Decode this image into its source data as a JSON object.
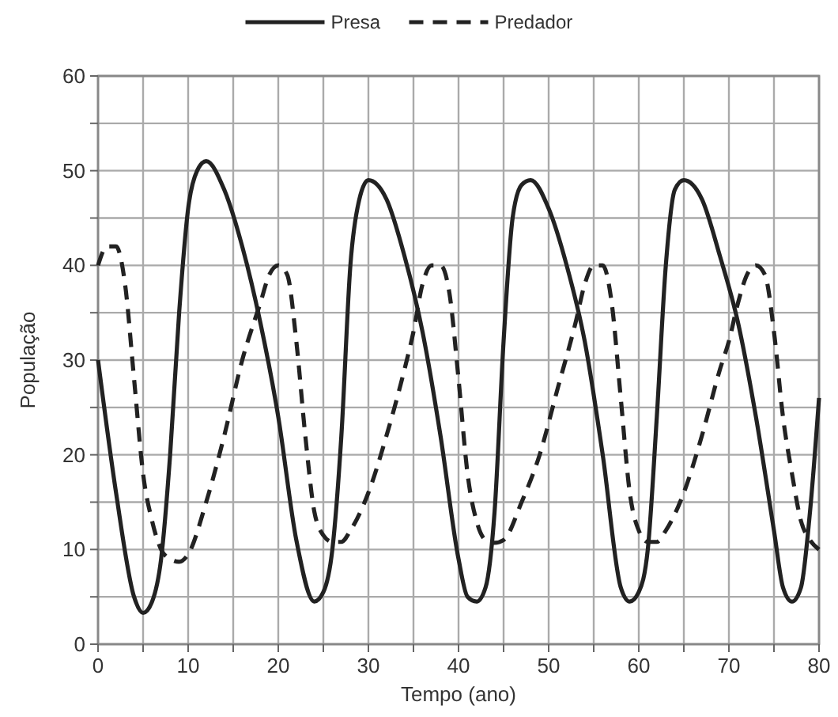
{
  "chart_data": {
    "type": "line",
    "xlabel": "Tempo (ano)",
    "ylabel": "População",
    "xlim": [
      0,
      80
    ],
    "ylim": [
      0,
      60
    ],
    "xticks": [
      0,
      {
        "value": 5,
        "label": null
      },
      10,
      {
        "value": 15,
        "label": null
      },
      20,
      {
        "value": 25,
        "label": null
      },
      30,
      {
        "value": 35,
        "label": null
      },
      40,
      {
        "value": 45,
        "label": null
      },
      50,
      {
        "value": 55,
        "label": null
      },
      60,
      {
        "value": 65,
        "label": null
      },
      70,
      {
        "value": 75,
        "label": null
      },
      80
    ],
    "yticks": [
      0,
      {
        "value": 5,
        "label": null
      },
      10,
      {
        "value": 15,
        "label": null
      },
      20,
      {
        "value": 25,
        "label": null
      },
      30,
      {
        "value": 35,
        "label": null
      },
      40,
      {
        "value": 45,
        "label": null
      },
      50,
      {
        "value": 55,
        "label": null
      },
      60
    ],
    "grid": true,
    "legend": "top",
    "series": [
      {
        "name": "Presa",
        "color": "#222222",
        "line_style": "solid",
        "x": [
          0,
          2,
          4,
          5,
          6,
          7,
          8,
          9,
          10,
          11,
          12,
          14,
          16,
          18,
          20,
          22,
          24,
          25,
          26,
          27,
          28,
          29,
          30,
          32,
          34,
          36,
          38,
          40,
          41,
          42,
          43,
          44,
          45,
          46,
          47,
          48,
          50,
          52,
          54,
          56,
          58,
          59,
          60,
          61,
          62,
          63,
          64,
          65,
          67,
          69,
          71,
          73,
          75,
          76,
          77,
          78,
          79,
          80
        ],
        "values": [
          30,
          16,
          5,
          3.3,
          4.5,
          9,
          20,
          35,
          46,
          50,
          51,
          48,
          42,
          34,
          24,
          11,
          4.5,
          5.5,
          10,
          22,
          40,
          47,
          49,
          47,
          41,
          33,
          22,
          9,
          5,
          4.5,
          6,
          14,
          32,
          45,
          48.5,
          49,
          46,
          40,
          32,
          20,
          6,
          4.5,
          5.5,
          10,
          24,
          40,
          48,
          49,
          47,
          41,
          34,
          24,
          12,
          6,
          4.5,
          6,
          14,
          26
        ]
      },
      {
        "name": "Predador",
        "color": "#222222",
        "line_style": "dashed",
        "x": [
          0,
          1,
          2,
          3,
          4,
          5,
          6,
          7,
          8,
          9,
          10,
          12,
          14,
          16,
          18,
          19,
          20,
          21,
          22,
          23,
          24,
          25,
          26,
          27,
          28,
          30,
          32,
          34,
          35,
          36,
          37,
          38,
          39,
          40,
          41,
          42,
          43,
          44,
          45,
          47,
          49,
          51,
          53,
          54,
          55,
          56,
          57,
          58,
          59,
          60,
          61,
          62,
          63,
          65,
          67,
          69,
          70,
          71,
          72,
          73,
          74,
          75,
          76,
          77,
          78,
          79,
          80
        ],
        "values": [
          40,
          42,
          42,
          38,
          28,
          18,
          13,
          10,
          9,
          8.7,
          9.5,
          15,
          22,
          30,
          36,
          39,
          40,
          39,
          32,
          22,
          14,
          11.5,
          10.8,
          10.8,
          12,
          16,
          22,
          29,
          33,
          38,
          40,
          40,
          37,
          28,
          18,
          13,
          11,
          10.7,
          11,
          15,
          20,
          27,
          34,
          38,
          40,
          40,
          36,
          26,
          16,
          12,
          10.8,
          10.8,
          12,
          16,
          22,
          29,
          32,
          36,
          39,
          40,
          39,
          33,
          24,
          18,
          13,
          11,
          10
        ]
      }
    ]
  }
}
